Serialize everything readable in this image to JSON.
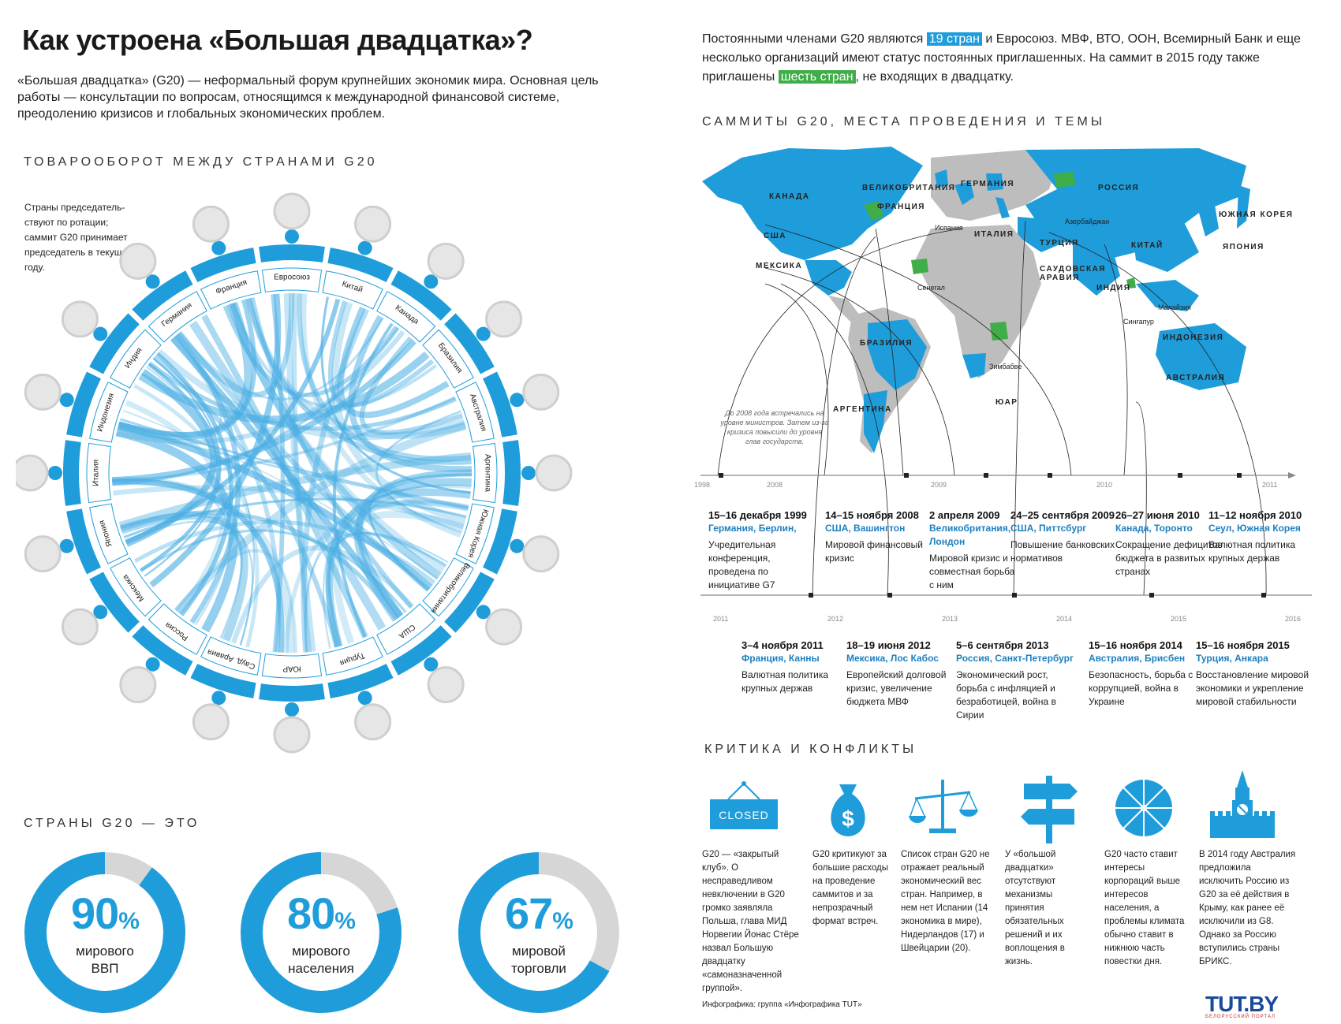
{
  "header": {
    "title": "Как устроена «Большая двадцатка»?",
    "intro": "«Большая двадцатка» (G20) — неформальный форум крупнейших экономик мира. Основная цель работы — консультации по вопросам, относящимся к международной финансовой системе, преодолению кризисов и глобальных экономических проблем."
  },
  "members": {
    "text_1": "Постоянными членами G20 являются ",
    "highlight_1": "19 стран",
    "text_2": " и Евросоюз. МВФ, ВТО, ООН, Всемирный Банк и еще несколько организаций имеют статус постоянных приглашенных. На саммит в 2015 году также приглашены ",
    "highlight_2": "шесть стран",
    "text_3": ", не входящих в двадцатку."
  },
  "trade": {
    "title": "ТОВАРООБОРОТ МЕЖДУ СТРАНАМИ G20",
    "note": "Страны председатель- ствуют по ротации; саммит G20 принимает председатель в текущем году.",
    "countries": [
      "Евросоюз",
      "Китай",
      "Канада",
      "Бразилия",
      "Австралия",
      "Аргентина",
      "Южная Корея",
      "Великобритания",
      "США",
      "Турция",
      "ЮАР",
      "Сауд. Аравия",
      "Россия",
      "Мексика",
      "Япония",
      "Италия",
      "Индонезия",
      "Индия",
      "Германия",
      "Франция"
    ]
  },
  "share": {
    "title": "СТРАНЫ G20 — ЭТО",
    "items": [
      {
        "value": 90,
        "pct": "90",
        "sign": "%",
        "label_1": "мирового",
        "label_2": "ВВП"
      },
      {
        "value": 80,
        "pct": "80",
        "sign": "%",
        "label_1": "мирового",
        "label_2": "населения"
      },
      {
        "value": 67,
        "pct": "67",
        "sign": "%",
        "label_1": "мировой",
        "label_2": "торговли"
      }
    ],
    "colors": {
      "filled": "#1f9ddb",
      "empty": "#d6d6d6"
    }
  },
  "summits": {
    "title": "САММИТЫ G20, МЕСТА ПРОВЕДЕНИЯ И ТЕМЫ",
    "note": "До 2008 года встречались на уровне министров. Затем из-за кризиса повысили до уровня глав государств.",
    "years_row1": [
      "1998",
      "2008",
      "2009",
      "2010",
      "2011"
    ],
    "years_row2": [
      "2011",
      "2012",
      "2013",
      "2014",
      "2015",
      "2016"
    ],
    "row1": [
      {
        "date": "15–16 декабря 1999",
        "place": "Германия, Берлин,",
        "topic": "Учредительная конференция, проведена по инициативе G7"
      },
      {
        "date": "14–15 ноября 2008",
        "place": "США, Вашингтон",
        "topic": "Мировой финансовый кризис"
      },
      {
        "date": "2 апреля 2009",
        "place": "Великобритания, Лондон",
        "topic": "Мировой кризис и совместная борьба с ним"
      },
      {
        "date": "24–25 сентября 2009",
        "place": "США, Питтсбург",
        "topic": "Повышение банковских нормативов"
      },
      {
        "date": "26–27 июня 2010",
        "place": "Канада, Торонто",
        "topic": "Сокращение дефицитов бюджета в развитых странах"
      },
      {
        "date": "11–12 ноября 2010",
        "place": "Сеул, Южная Корея",
        "topic": "Валютная политика крупных держав"
      }
    ],
    "row2": [
      {
        "date": "3–4 ноября 2011",
        "place": "Франция, Канны",
        "topic": "Валютная политика крупных держав"
      },
      {
        "date": "18–19 июня 2012",
        "place": "Мексика, Лос Кабос",
        "topic": "Европейский долговой кризис, увеличение бюджета МВФ"
      },
      {
        "date": "5–6 сентября 2013",
        "place": "Россия, Санкт-Петербург",
        "topic": "Экономический рост, борьба с инфляцией и безработицей, война в Сирии"
      },
      {
        "date": "15–16 ноября 2014",
        "place": "Австралия, Брисбен",
        "topic": "Безопасность, борьба с коррупцией, война в Украине"
      },
      {
        "date": "15–16 ноября 2015",
        "place": "Турция, Анкара",
        "topic": "Восстановление мировой экономики и укрепление мировой стабильности"
      }
    ]
  },
  "map": {
    "labels": [
      "КАНАДА",
      "ВЕЛИКОБРИТАНИЯ",
      "ГЕРМАНИЯ",
      "РОССИЯ",
      "ФРАНЦИЯ",
      "Испания",
      "ИТАЛИЯ",
      "Азербайджан",
      "ЮЖНАЯ КОРЕЯ",
      "США",
      "ТУРЦИЯ",
      "КИТАЙ",
      "ЯПОНИЯ",
      "МЕКСИКА",
      "САУДОВСКАЯ АРАВИЯ",
      "Сенегал",
      "ИНДИЯ",
      "Малайзия",
      "Сингапур",
      "ИНДОНЕЗИЯ",
      "БРАЗИЛИЯ",
      "Зимбабве",
      "АВСТРАЛИЯ",
      "ЮАР",
      "АРГЕНТИНА"
    ],
    "colors": {
      "member": "#1f9ddb",
      "other": "#bdbdbd",
      "invited": "#3fae49"
    }
  },
  "critique": {
    "title": "КРИТИКА И КОНФЛИКТЫ",
    "sign_text": "CLOSED",
    "money_sign": "$",
    "items": [
      "G20 — «закрытый клуб». О несправедливом невключении в G20 громко заявляла Польша, глава МИД Норвегии Йонас Стёре назвал Большую двадцатку «самоназначенной группой».",
      "G20 критикуют за большие расходы на проведение саммитов и за непрозрачный формат встреч.",
      "Список стран G20 не отражает реальный экономический вес стран. Например, в нем нет Испании (14 экономика в мире), Нидерландов (17) и Швейцарии (20).",
      "У «большой двадцатки» отсутствуют механизмы принятия обязательных решений и их воплощения в жизнь.",
      "G20 часто ставит интересы корпораций выше интересов населения, а проблемы климата обычно ставит в нижнюю часть повестки дня.",
      "В 2014 году Австралия предложила исключить Россию из G20 за её действия в Крыму, как ранее её исключили из G8. Однако за Россию вступились страны БРИКС."
    ]
  },
  "footer": {
    "credit": "Инфографика: группа «Инфографика TUT»",
    "logo": "TUT.BY",
    "logo_sub": "БЕЛОРУССКИЙ ПОРТАЛ"
  }
}
